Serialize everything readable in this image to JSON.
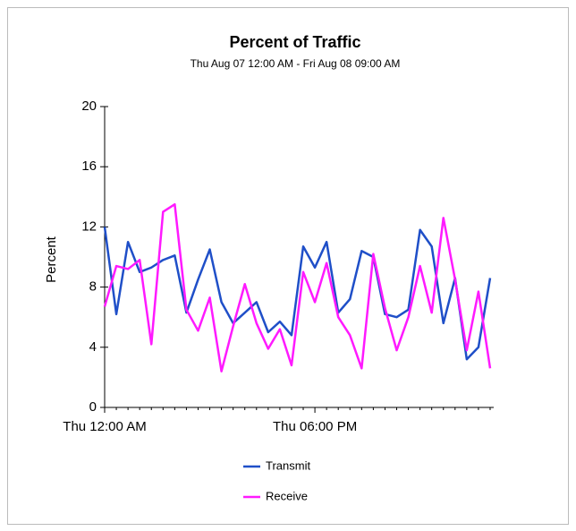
{
  "chart_data": {
    "type": "line",
    "title": "Percent of Traffic",
    "subtitle": "Thu Aug 07 12:00 AM - Fri Aug 08 09:00 AM",
    "y_label": "Percent",
    "categories": [
      "Thu 12:00 AM",
      null,
      null,
      null,
      null,
      null,
      null,
      null,
      null,
      null,
      null,
      null,
      null,
      null,
      null,
      null,
      null,
      null,
      "Thu 06:00 PM",
      null,
      null,
      null,
      null,
      null,
      null,
      null,
      null,
      null,
      null,
      null,
      null,
      null,
      null,
      null
    ],
    "series": [
      {
        "name": "Transmit",
        "color": "#1f4fc8",
        "values": [
          12,
          6.2,
          11,
          9,
          9.3,
          9.8,
          10.1,
          6.3,
          8.5,
          10.5,
          7,
          5.6,
          6.3,
          7,
          5,
          5.7,
          4.8,
          10.7,
          9.3,
          11,
          6.3,
          7.2,
          10.4,
          10,
          6.2,
          6,
          6.5,
          11.8,
          10.7,
          5.6,
          8.6,
          3.2,
          4,
          8.6
        ]
      },
      {
        "name": "Receive",
        "color": "#ff1aff",
        "values": [
          6.7,
          9.4,
          9.2,
          9.8,
          4.2,
          13,
          13.5,
          6.5,
          5.1,
          7.3,
          2.4,
          5.4,
          8.2,
          5.6,
          3.9,
          5.2,
          2.8,
          9,
          7,
          9.6,
          6,
          4.8,
          2.6,
          10.2,
          6.6,
          3.8,
          6,
          9.4,
          6.3,
          12.6,
          8.5,
          3.8,
          7.7,
          2.6
        ]
      }
    ],
    "ylim": [
      0,
      20
    ],
    "yticks": [
      0,
      4,
      8,
      12,
      16,
      20
    ],
    "grid": false
  }
}
